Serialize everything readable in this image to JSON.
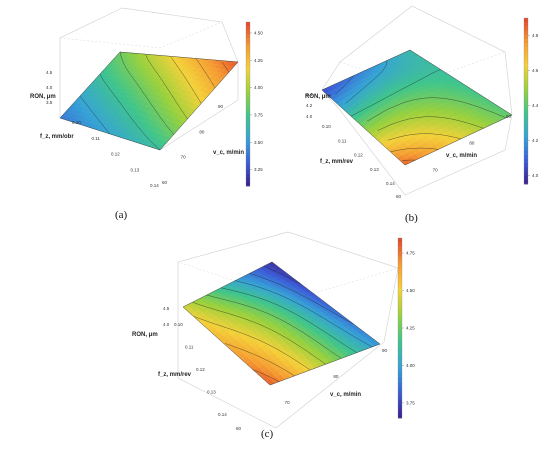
{
  "figure": {
    "captions": [
      "(a)",
      "(b)",
      "(c)"
    ]
  },
  "colormap": [
    "#3a1e8c",
    "#3c5ed8",
    "#36a3d6",
    "#3fc58c",
    "#9ad13c",
    "#f4d13a",
    "#f59a33",
    "#e3432a"
  ],
  "chart_data": [
    {
      "type": "surface",
      "panel": "(a)",
      "zlabel": "RON, μm",
      "xlabel": "f_z, mm/obr",
      "ylabel": "v_c, m/min",
      "x_ticks": [
        "0.10",
        "0.11",
        "0.12",
        "0.13",
        "0.14"
      ],
      "y_ticks": [
        "60",
        "70",
        "80",
        "90"
      ],
      "z_ticks": [
        "3.5",
        "4.0",
        "4.5"
      ],
      "colorbar_ticks": [
        "3.25",
        "3.50",
        "3.75",
        "4.00",
        "4.25",
        "4.50"
      ],
      "colorbar_range": [
        3.1,
        4.6
      ],
      "x_range": [
        0.1,
        0.14
      ],
      "y_range": [
        60,
        90
      ],
      "surface_samples": [
        {
          "fz": 0.1,
          "vc": 60,
          "ron": 3.4
        },
        {
          "fz": 0.1,
          "vc": 90,
          "ron": 3.85
        },
        {
          "fz": 0.14,
          "vc": 60,
          "ron": 3.7
        },
        {
          "fz": 0.14,
          "vc": 90,
          "ron": 4.55
        }
      ]
    },
    {
      "type": "surface",
      "panel": "(b)",
      "zlabel": "RON, μm",
      "xlabel": "f_z, mm/rev",
      "ylabel": "v_c, m/min",
      "x_ticks": [
        "0.10",
        "0.11",
        "0.12",
        "0.13",
        "0.14"
      ],
      "y_ticks": [
        "60",
        "70",
        "80",
        "90"
      ],
      "z_ticks": [
        "4.0",
        "4.2",
        "4.4"
      ],
      "colorbar_ticks": [
        "4.0",
        "4.2",
        "4.4",
        "4.6",
        "4.8"
      ],
      "colorbar_range": [
        3.95,
        4.9
      ],
      "x_range": [
        0.1,
        0.14
      ],
      "y_range": [
        60,
        90
      ],
      "surface_samples": [
        {
          "fz": 0.1,
          "vc": 60,
          "ron": 4.05
        },
        {
          "fz": 0.1,
          "vc": 90,
          "ron": 4.3
        },
        {
          "fz": 0.14,
          "vc": 60,
          "ron": 4.85
        },
        {
          "fz": 0.14,
          "vc": 90,
          "ron": 4.4
        }
      ]
    },
    {
      "type": "surface",
      "panel": "(c)",
      "zlabel": "RON, μm",
      "xlabel": "f_z, mm/rev",
      "ylabel": "v_c, m/min",
      "x_ticks": [
        "0.10",
        "0.11",
        "0.12",
        "0.13",
        "0.14"
      ],
      "y_ticks": [
        "60",
        "70",
        "80",
        "90"
      ],
      "z_ticks": [
        "4.0",
        "4.5"
      ],
      "colorbar_ticks": [
        "3.75",
        "4.00",
        "4.25",
        "4.50",
        "4.75"
      ],
      "colorbar_range": [
        3.65,
        4.85
      ],
      "x_range": [
        0.1,
        0.14
      ],
      "y_range": [
        60,
        90
      ],
      "surface_samples": [
        {
          "fz": 0.1,
          "vc": 60,
          "ron": 4.45
        },
        {
          "fz": 0.1,
          "vc": 90,
          "ron": 3.7
        },
        {
          "fz": 0.14,
          "vc": 60,
          "ron": 4.8
        },
        {
          "fz": 0.14,
          "vc": 90,
          "ron": 3.95
        }
      ]
    }
  ]
}
